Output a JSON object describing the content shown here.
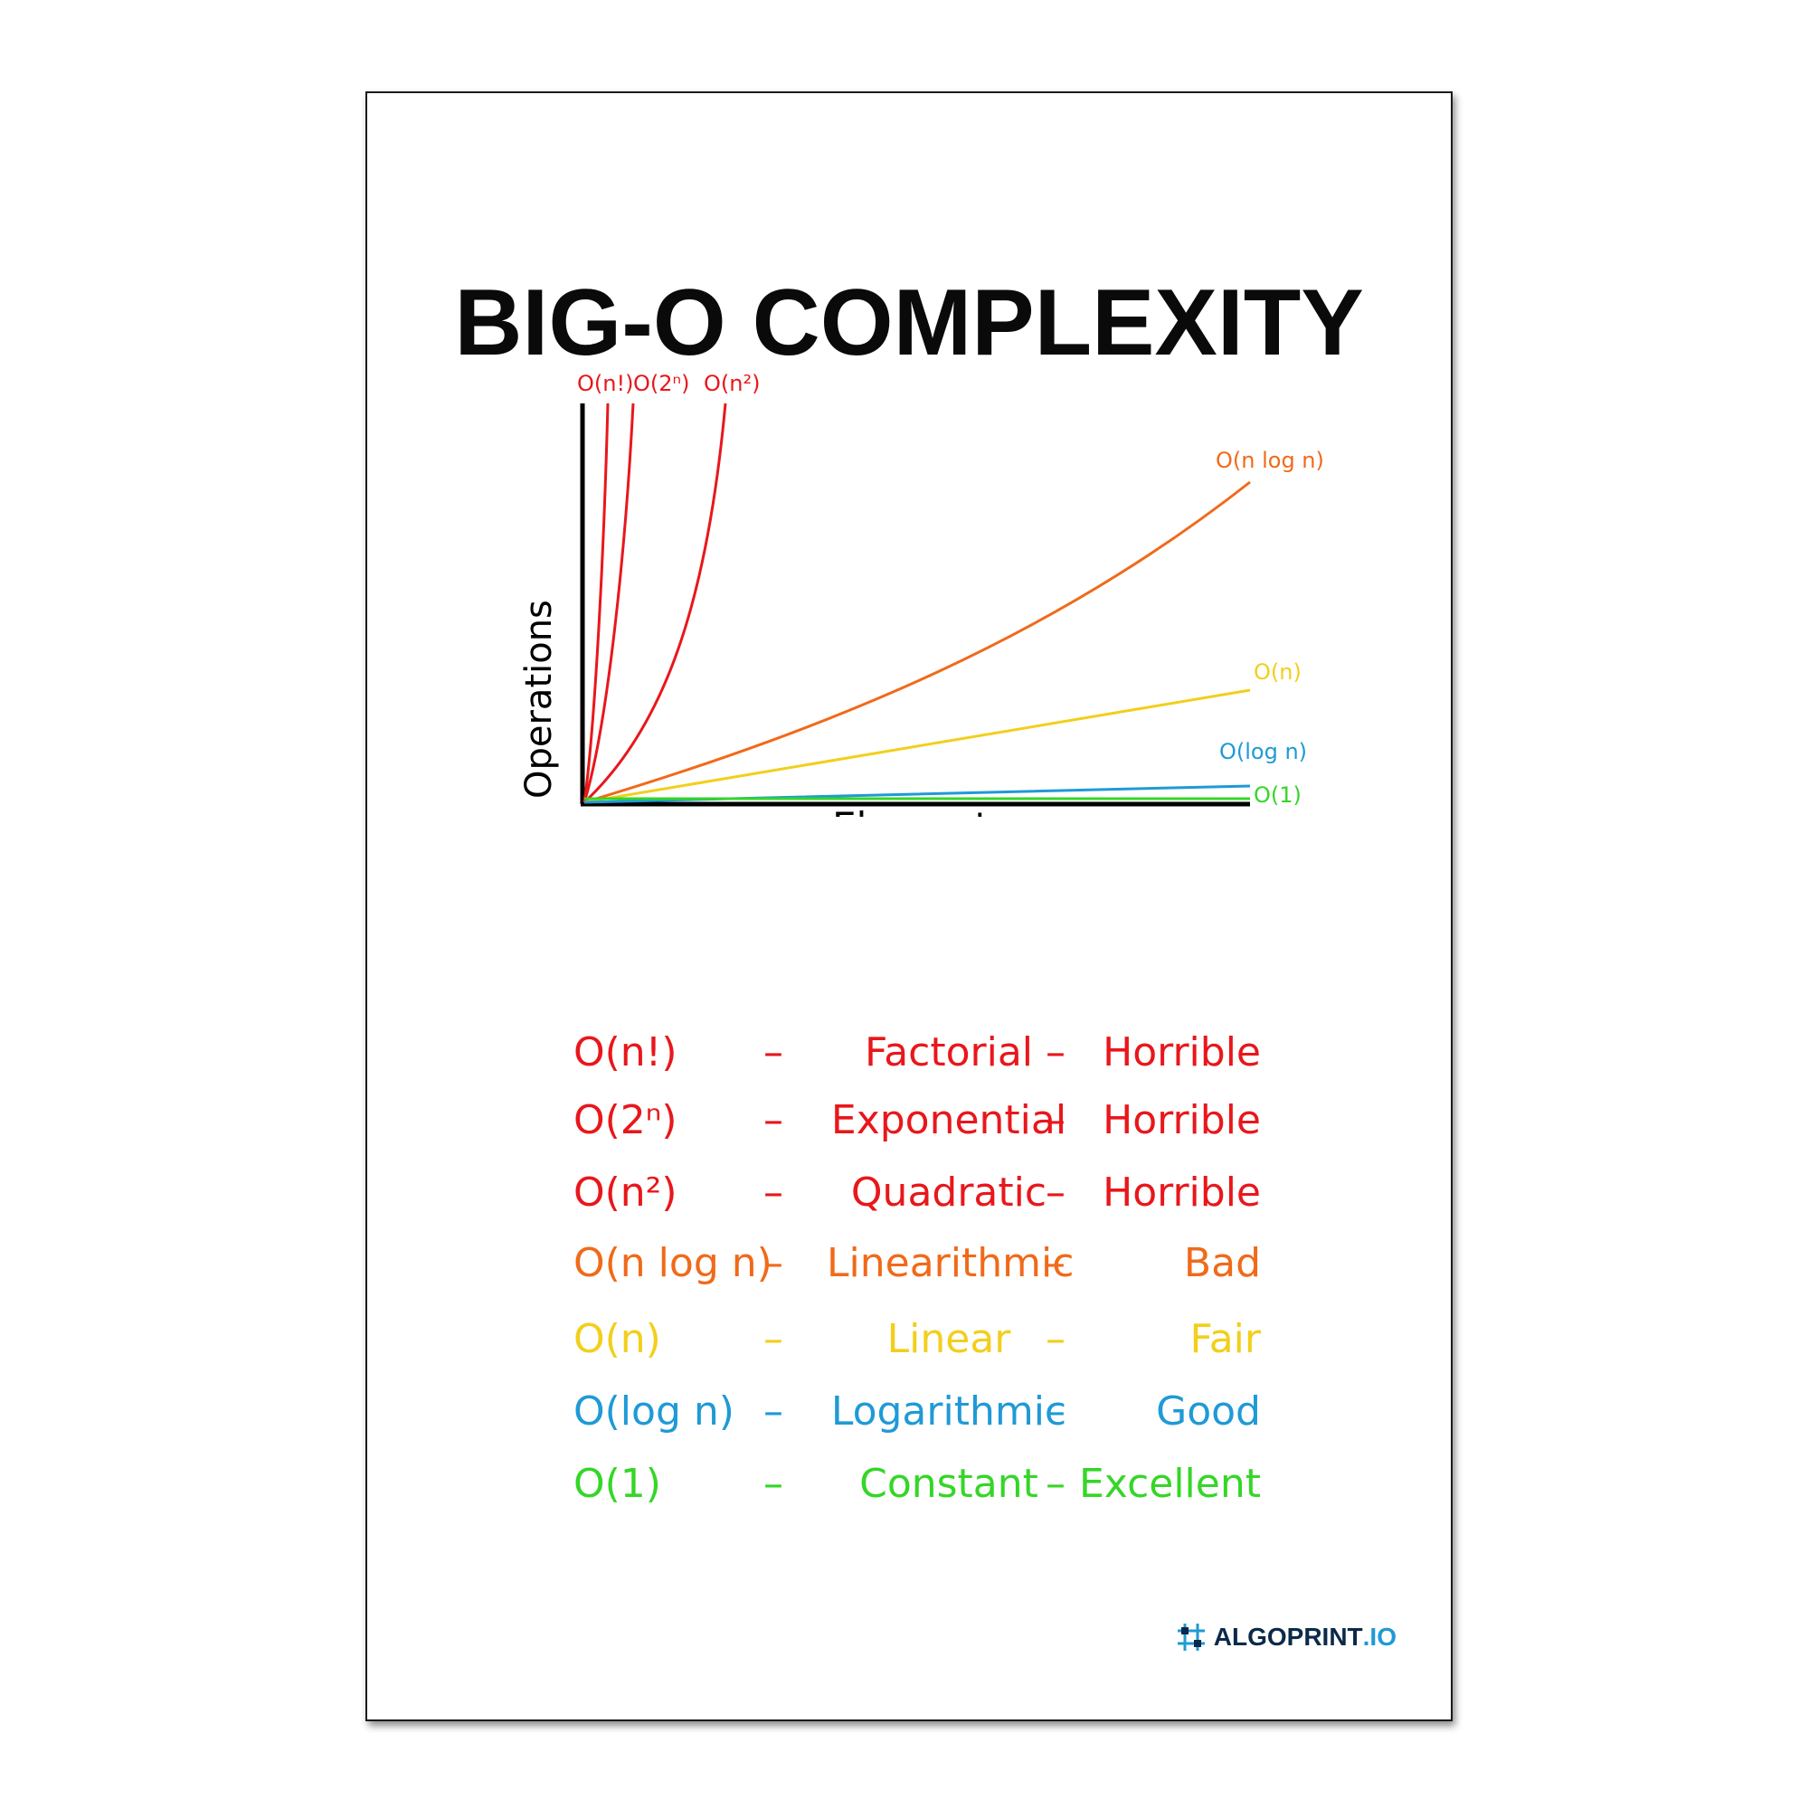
{
  "title": "BIG-O COMPLEXITY",
  "chart_data": {
    "type": "line",
    "xlabel": "Elements",
    "ylabel": "Operations",
    "series": [
      {
        "name": "O(n!)",
        "color": "#e8171b",
        "label_sup": ""
      },
      {
        "name": "O(2ⁿ)",
        "color": "#e8171b",
        "label_sup": ""
      },
      {
        "name": "O(n²)",
        "color": "#e8171b",
        "label_sup": ""
      },
      {
        "name": "O(n log n)",
        "color": "#f06a1a",
        "label_sup": ""
      },
      {
        "name": "O(n)",
        "color": "#f2cf1c",
        "label_sup": ""
      },
      {
        "name": "O(log n)",
        "color": "#1f9ad6",
        "label_sup": ""
      },
      {
        "name": "O(1)",
        "color": "#35d627",
        "label_sup": ""
      }
    ]
  },
  "legend": [
    {
      "notation": "O(n!)",
      "name": "Factorial",
      "rating": "Horrible",
      "color": "#e8171b"
    },
    {
      "notation": "O(2ⁿ)",
      "name": "Exponential",
      "rating": "Horrible",
      "color": "#e8171b"
    },
    {
      "notation": "O(n²)",
      "name": "Quadratic",
      "rating": "Horrible",
      "color": "#e8171b"
    },
    {
      "notation": "O(n log n)",
      "name": "Linearithmic",
      "rating": "Bad",
      "color": "#f06a1a"
    },
    {
      "notation": "O(n)",
      "name": "Linear",
      "rating": "Fair",
      "color": "#f2cf1c"
    },
    {
      "notation": "O(log n)",
      "name": "Logarithmic",
      "rating": "Good",
      "color": "#1f9ad6"
    },
    {
      "notation": "O(1)",
      "name": "Constant",
      "rating": "Excellent",
      "color": "#35d627"
    }
  ],
  "dash": "–",
  "brand": {
    "part1": "ALGOPRINT",
    "part2": ".IO",
    "icon": "algoprint-logo-icon"
  }
}
